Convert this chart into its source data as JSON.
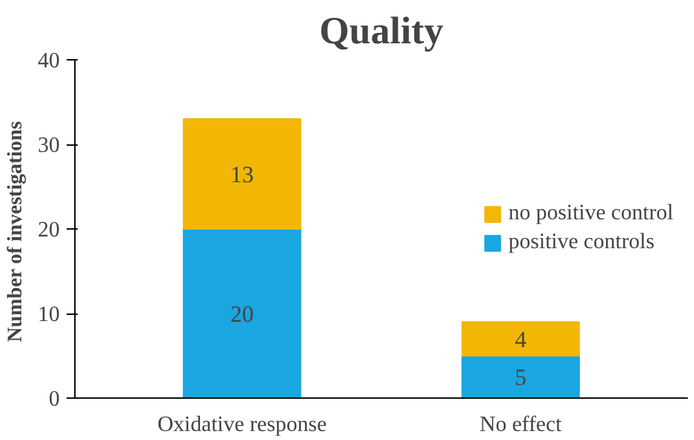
{
  "chart_data": {
    "type": "bar",
    "title": "Quality",
    "ylabel": "Number  of investigations",
    "categories": [
      "Oxidative response",
      "No effect"
    ],
    "stacked": true,
    "series": [
      {
        "name": "positive controls",
        "color": "#1aa6e0",
        "values": [
          20,
          5
        ]
      },
      {
        "name": "no positive control",
        "color": "#f2b705",
        "values": [
          13,
          4
        ]
      }
    ],
    "ylim": [
      0,
      40
    ],
    "yticks": [
      0,
      10,
      20,
      30,
      40
    ],
    "data_labels": true,
    "legend": "right",
    "grid": false
  }
}
